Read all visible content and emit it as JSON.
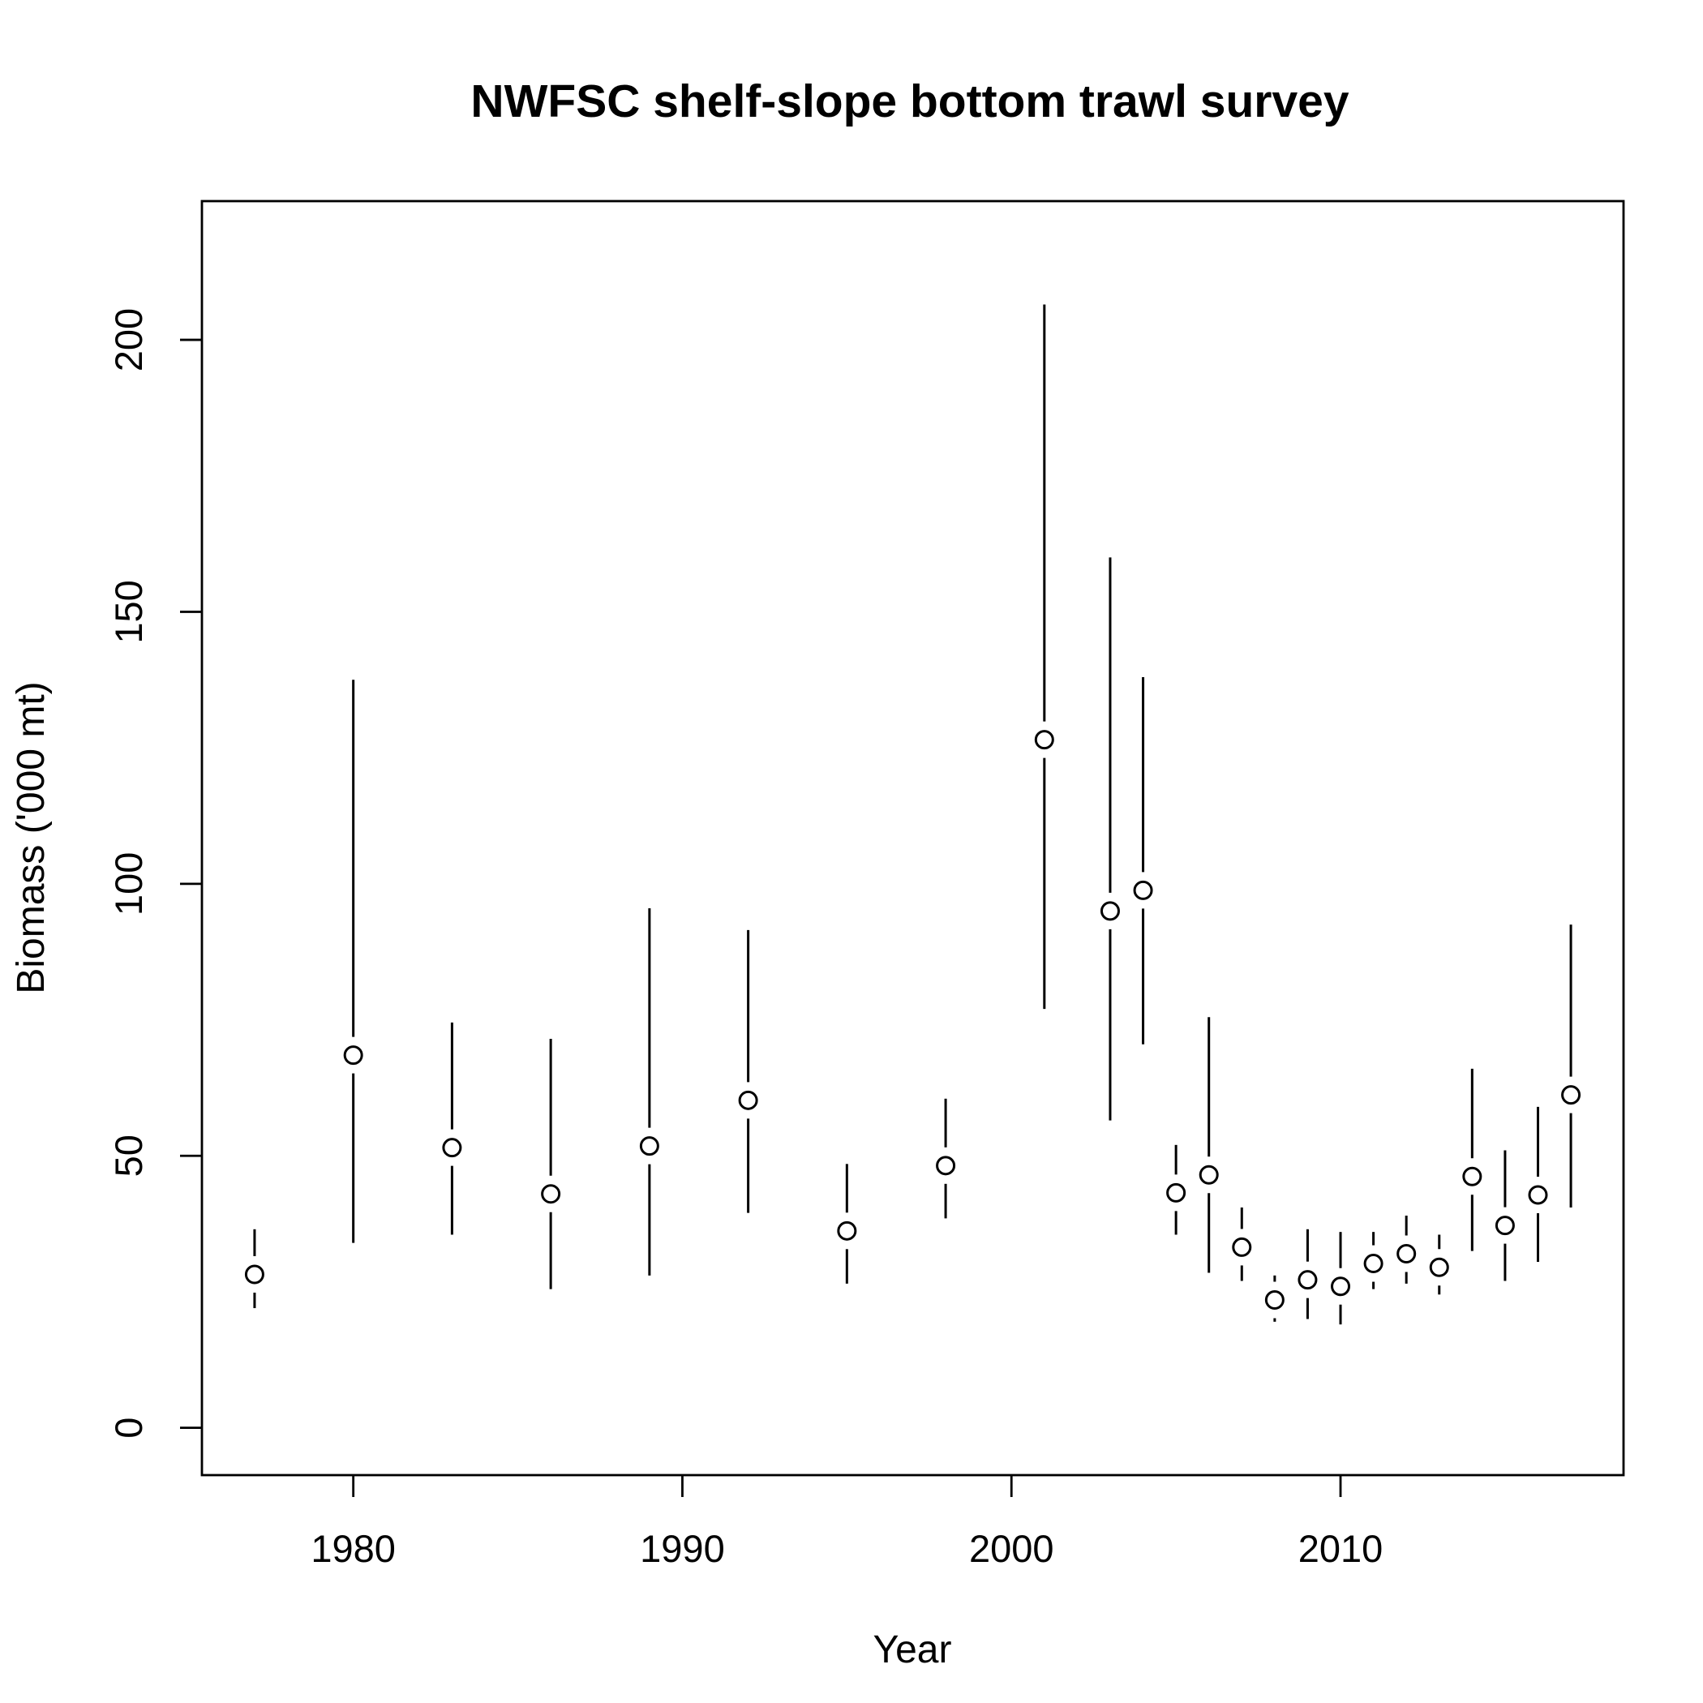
{
  "chart_data": {
    "type": "scatter",
    "title": "NWFSC shelf-slope bottom trawl survey",
    "xlabel": "Year",
    "ylabel": "Biomass ('000 mt)",
    "xlim": [
      1975.4,
      2018.6
    ],
    "ylim": [
      -8.7,
      225.5
    ],
    "x_ticks": [
      1980,
      1990,
      2000,
      2010
    ],
    "y_ticks": [
      0,
      50,
      100,
      150,
      200
    ],
    "grid": false,
    "points": [
      {
        "x": 1977,
        "y": 28.2,
        "lo": 22.0,
        "hi": 36.5
      },
      {
        "x": 1980,
        "y": 68.5,
        "lo": 34.0,
        "hi": 137.5
      },
      {
        "x": 1983,
        "y": 51.5,
        "lo": 35.5,
        "hi": 74.5
      },
      {
        "x": 1986,
        "y": 43.0,
        "lo": 25.5,
        "hi": 71.5
      },
      {
        "x": 1989,
        "y": 51.8,
        "lo": 28.0,
        "hi": 95.5
      },
      {
        "x": 1992,
        "y": 60.2,
        "lo": 39.5,
        "hi": 91.5
      },
      {
        "x": 1995,
        "y": 36.2,
        "lo": 26.5,
        "hi": 48.5
      },
      {
        "x": 1998,
        "y": 48.2,
        "lo": 38.5,
        "hi": 60.5
      },
      {
        "x": 2001,
        "y": 126.5,
        "lo": 77.0,
        "hi": 206.5
      },
      {
        "x": 2003,
        "y": 95.0,
        "lo": 56.5,
        "hi": 160.0
      },
      {
        "x": 2004,
        "y": 98.8,
        "lo": 70.5,
        "hi": 138.0
      },
      {
        "x": 2005,
        "y": 43.2,
        "lo": 35.5,
        "hi": 52.0
      },
      {
        "x": 2006,
        "y": 46.5,
        "lo": 28.5,
        "hi": 75.5
      },
      {
        "x": 2007,
        "y": 33.2,
        "lo": 27.0,
        "hi": 40.5
      },
      {
        "x": 2008,
        "y": 23.5,
        "lo": 19.5,
        "hi": 28.0
      },
      {
        "x": 2009,
        "y": 27.2,
        "lo": 20.0,
        "hi": 36.5
      },
      {
        "x": 2010,
        "y": 26.0,
        "lo": 19.0,
        "hi": 36.0
      },
      {
        "x": 2011,
        "y": 30.2,
        "lo": 25.5,
        "hi": 36.0
      },
      {
        "x": 2012,
        "y": 32.0,
        "lo": 26.5,
        "hi": 39.0
      },
      {
        "x": 2013,
        "y": 29.5,
        "lo": 24.5,
        "hi": 35.5
      },
      {
        "x": 2014,
        "y": 46.2,
        "lo": 32.5,
        "hi": 66.0
      },
      {
        "x": 2015,
        "y": 37.2,
        "lo": 27.0,
        "hi": 51.0
      },
      {
        "x": 2016,
        "y": 42.8,
        "lo": 30.5,
        "hi": 59.0
      },
      {
        "x": 2017,
        "y": 61.2,
        "lo": 40.5,
        "hi": 92.5
      }
    ]
  }
}
